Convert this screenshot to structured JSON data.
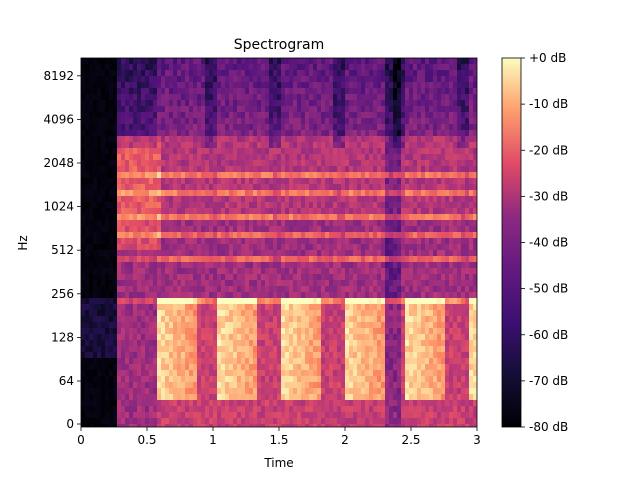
{
  "chart_data": {
    "type": "heatmap",
    "title": "Spectrogram",
    "xlabel": "Time",
    "ylabel": "Hz",
    "x_unit": "s",
    "xlim": [
      0,
      3.0
    ],
    "yscale": "log2",
    "y_ticks": [
      {
        "value": 0,
        "label": "0"
      },
      {
        "value": 64,
        "label": "64"
      },
      {
        "value": 128,
        "label": "128"
      },
      {
        "value": 256,
        "label": "256"
      },
      {
        "value": 512,
        "label": "512"
      },
      {
        "value": 1024,
        "label": "1024"
      },
      {
        "value": 2048,
        "label": "2048"
      },
      {
        "value": 4096,
        "label": "4096"
      },
      {
        "value": 8192,
        "label": "8192"
      }
    ],
    "x_ticks": [
      {
        "value": 0,
        "label": "0"
      },
      {
        "value": 0.5,
        "label": "0.5"
      },
      {
        "value": 1.0,
        "label": "1"
      },
      {
        "value": 1.5,
        "label": "1.5"
      },
      {
        "value": 2.0,
        "label": "2"
      },
      {
        "value": 2.5,
        "label": "2.5"
      },
      {
        "value": 3.0,
        "label": "3"
      }
    ],
    "colorbar": {
      "cmap": "magma",
      "min_db": -80,
      "max_db": 0,
      "ticks": [
        {
          "value": 0,
          "label": "+0 dB"
        },
        {
          "value": -10,
          "label": "-10 dB"
        },
        {
          "value": -20,
          "label": "-20 dB"
        },
        {
          "value": -30,
          "label": "-30 dB"
        },
        {
          "value": -40,
          "label": "-40 dB"
        },
        {
          "value": -50,
          "label": "-50 dB"
        },
        {
          "value": -60,
          "label": "-60 dB"
        },
        {
          "value": -70,
          "label": "-70 dB"
        },
        {
          "value": -80,
          "label": "-80 dB"
        }
      ]
    },
    "silence_end_s": 0.25,
    "note_onsets_s": [
      0.58,
      1.05,
      1.53,
      2.0,
      2.47,
      2.95
    ],
    "harmonic_bands_hz": [
      220,
      440,
      660,
      880,
      1320,
      1760
    ],
    "grid": false
  }
}
